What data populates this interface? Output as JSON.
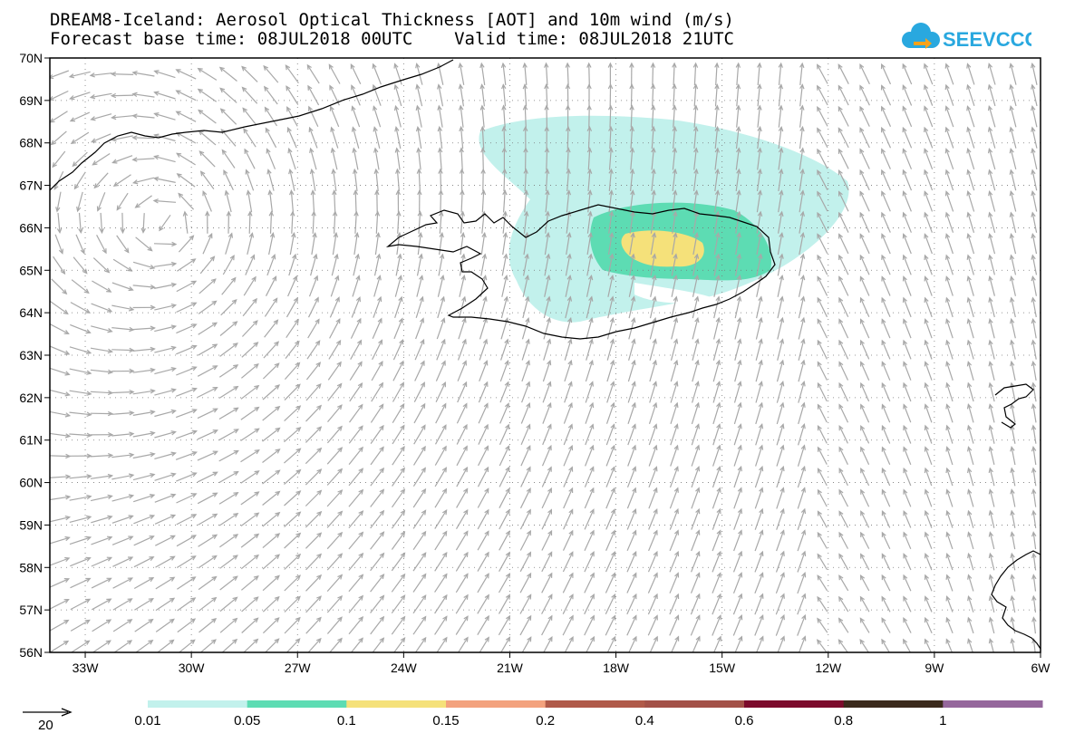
{
  "header": {
    "title_line1": "DREAM8-Iceland: Aerosol Optical Thickness [AOT] and 10m wind (m/s)",
    "title_line2": "Forecast base time: 08JUL2018 00UTC    Valid time: 08JUL2018 21UTC"
  },
  "logo": {
    "text": "SEEVCCC",
    "icon": "cloud-arrow-icon",
    "color": "#29a8df"
  },
  "map": {
    "lat_range": [
      56,
      70
    ],
    "lon_range": [
      -34,
      -6
    ],
    "lat_labels": [
      "56N",
      "57N",
      "58N",
      "59N",
      "60N",
      "61N",
      "62N",
      "63N",
      "64N",
      "65N",
      "66N",
      "67N",
      "68N",
      "69N",
      "70N"
    ],
    "lon_labels": [
      "33W",
      "30W",
      "27W",
      "24W",
      "21W",
      "18W",
      "15W",
      "12W",
      "9W",
      "6W"
    ],
    "wind_arrow_color": "#a8a8a8",
    "coastline_color": "#000000"
  },
  "legend": {
    "wind_reference_value": "20",
    "colorbar": {
      "labels": [
        "0.01",
        "0.05",
        "0.1",
        "0.15",
        "0.2",
        "0.4",
        "0.6",
        "0.8",
        "1"
      ],
      "colors": [
        "#c2f1ec",
        "#5ddcb3",
        "#f5e17a",
        "#f3a27e",
        "#b05a49",
        "#a35148",
        "#7c0b2c",
        "#3b2a1c",
        "#95679c",
        "#a8a8a8"
      ]
    }
  }
}
